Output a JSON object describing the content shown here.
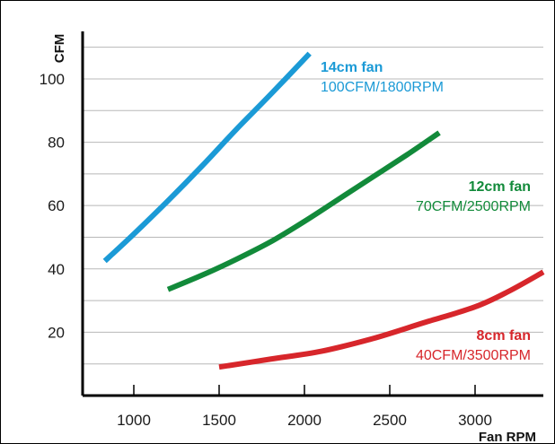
{
  "chart_data": {
    "type": "line",
    "title": "",
    "xlabel": "Fan RPM",
    "ylabel": "CFM",
    "xlim": [
      700,
      3400
    ],
    "ylim": [
      0,
      115
    ],
    "x_ticks": [
      1000,
      1500,
      2000,
      2500,
      3000
    ],
    "y_ticks": [
      20,
      40,
      60,
      80,
      100
    ],
    "grid": "horizontal",
    "series": [
      {
        "name": "14cm fan",
        "spec": "100CFM/1800RPM",
        "color": "#1b9ad6",
        "points": [
          [
            830,
            42.5
          ],
          [
            1000,
            51
          ],
          [
            1200,
            61.5
          ],
          [
            1400,
            72.5
          ],
          [
            1600,
            84
          ],
          [
            1800,
            95
          ],
          [
            2030,
            108
          ]
        ]
      },
      {
        "name": "12cm fan",
        "spec": "70CFM/2500RPM",
        "color": "#128a3a",
        "points": [
          [
            1200,
            33.5
          ],
          [
            1400,
            38
          ],
          [
            1600,
            43
          ],
          [
            1800,
            48.5
          ],
          [
            2000,
            55
          ],
          [
            2200,
            62
          ],
          [
            2400,
            69
          ],
          [
            2600,
            76
          ],
          [
            2790,
            83
          ]
        ]
      },
      {
        "name": "8cm fan",
        "spec": "40CFM/3500RPM",
        "color": "#d7262b",
        "points": [
          [
            1500,
            9
          ],
          [
            1800,
            11.5
          ],
          [
            2100,
            14
          ],
          [
            2400,
            18
          ],
          [
            2700,
            23
          ],
          [
            3000,
            28
          ],
          [
            3200,
            33
          ],
          [
            3400,
            39
          ]
        ]
      }
    ]
  }
}
